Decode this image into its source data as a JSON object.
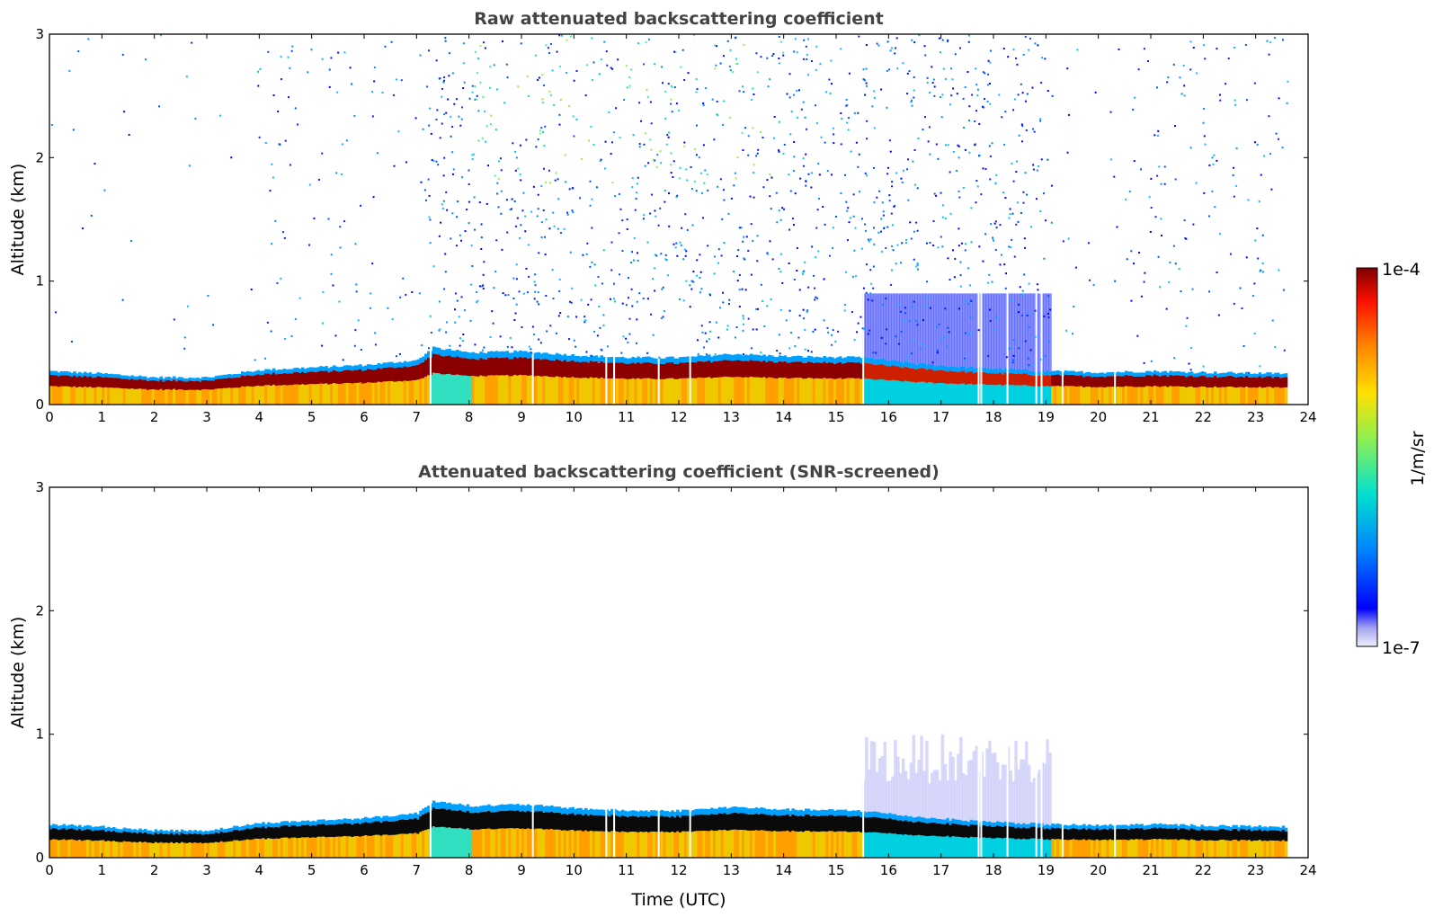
{
  "chart_data": [
    {
      "type": "heatmap",
      "title": "Raw attenuated backscattering coefficient",
      "xlabel": "",
      "ylabel": "Altitude (km)",
      "xlim": [
        0,
        24
      ],
      "ylim": [
        0,
        3
      ],
      "xticks": [
        "0",
        "1",
        "2",
        "3",
        "4",
        "5",
        "6",
        "7",
        "8",
        "9",
        "10",
        "11",
        "12",
        "13",
        "14",
        "15",
        "16",
        "17",
        "18",
        "19",
        "20",
        "21",
        "22",
        "23",
        "24"
      ],
      "yticks": [
        "0",
        "1",
        "2",
        "3"
      ],
      "data_end_hour": 23.6,
      "cloud_base_km": [
        {
          "t": 0,
          "z": 0.27
        },
        {
          "t": 1,
          "z": 0.25
        },
        {
          "t": 2,
          "z": 0.22
        },
        {
          "t": 3,
          "z": 0.22
        },
        {
          "t": 4,
          "z": 0.28
        },
        {
          "t": 5,
          "z": 0.3
        },
        {
          "t": 6,
          "z": 0.32
        },
        {
          "t": 7,
          "z": 0.36
        },
        {
          "t": 7.3,
          "z": 0.46
        },
        {
          "t": 8,
          "z": 0.42
        },
        {
          "t": 9,
          "z": 0.43
        },
        {
          "t": 10,
          "z": 0.4
        },
        {
          "t": 11,
          "z": 0.38
        },
        {
          "t": 12,
          "z": 0.38
        },
        {
          "t": 13,
          "z": 0.41
        },
        {
          "t": 14,
          "z": 0.39
        },
        {
          "t": 15.5,
          "z": 0.38
        },
        {
          "t": 16.5,
          "z": 0.33
        },
        {
          "t": 17.5,
          "z": 0.3
        },
        {
          "t": 19,
          "z": 0.27
        },
        {
          "t": 20,
          "z": 0.26
        },
        {
          "t": 21,
          "z": 0.27
        },
        {
          "t": 22,
          "z": 0.26
        },
        {
          "t": 23.6,
          "z": 0.25
        }
      ]
    },
    {
      "type": "heatmap",
      "title": "Attenuated backscattering coefficient (SNR-screened)",
      "xlabel": "Time (UTC)",
      "ylabel": "Altitude (km)",
      "xlim": [
        0,
        24
      ],
      "ylim": [
        0,
        3
      ],
      "xticks": [
        "0",
        "1",
        "2",
        "3",
        "4",
        "5",
        "6",
        "7",
        "8",
        "9",
        "10",
        "11",
        "12",
        "13",
        "14",
        "15",
        "16",
        "17",
        "18",
        "19",
        "20",
        "21",
        "22",
        "23",
        "24"
      ],
      "yticks": [
        "0",
        "1",
        "2",
        "3"
      ],
      "data_end_hour": 23.6
    }
  ],
  "colorbar": {
    "label": "1/m/sr",
    "max_label": "1e-4",
    "min_label": "1e-7",
    "colors": [
      "#e6e6fa",
      "#0000ff",
      "#00a0ff",
      "#00e6c8",
      "#96f050",
      "#ffe600",
      "#ff8c00",
      "#ff1e00",
      "#8b0000"
    ]
  }
}
